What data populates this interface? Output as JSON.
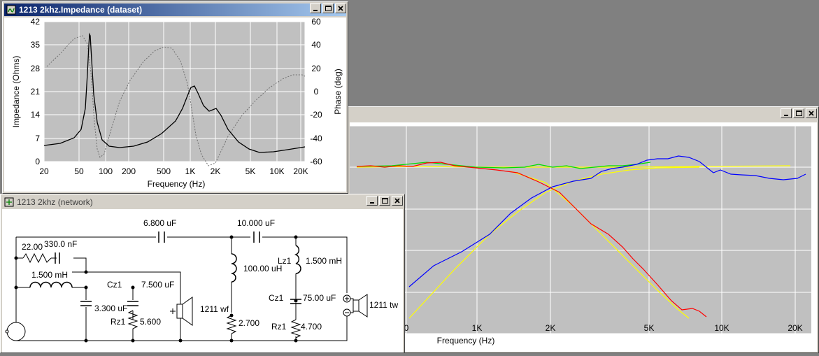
{
  "windows": {
    "impedance": {
      "title": "1213 2khz.Impedance (dataset)",
      "chart": {
        "y_left_label": "Impedance (Ohms)",
        "y_right_label": "Phase (deg)",
        "x_label": "Frequency (Hz)",
        "y_left_ticks": [
          "42",
          "35",
          "28",
          "21",
          "14",
          "7",
          "0"
        ],
        "y_right_ticks": [
          "60",
          "40",
          "20",
          "0",
          "-20",
          "-40",
          "-60"
        ],
        "x_ticks": [
          "20",
          "50",
          "100",
          "200",
          "500",
          "1K",
          "2K",
          "5K",
          "10K",
          "20K"
        ]
      }
    },
    "response": {
      "x_label": "Frequency (Hz)",
      "x_ticks": [
        "0",
        "1K",
        "2K",
        "5K",
        "10K",
        "20K"
      ]
    },
    "network": {
      "title": "1213 2khz (network)",
      "labels": {
        "c_top_left": "6.800 uF",
        "c_top_right": "10.000 uF",
        "r_22": "22.00",
        "c_330": "330.0 nF",
        "l_1500_left": "1.500 mH",
        "cz1_left": "Cz1",
        "c_7500": "7.500 uF",
        "c_3300": "3.300 uF",
        "rz1_left": "Rz1",
        "r_5600": "5.600",
        "woofer": "1211 wf",
        "l_100": "100.00 uH",
        "r_2700": "2.700",
        "lz1": "Lz1",
        "l_1500_right": "1.500 mH",
        "cz1_right": "Cz1",
        "c_75": "75.00 uF",
        "rz1_right": "Rz1",
        "r_4700": "4.700",
        "tweeter": "1211 tw"
      }
    }
  },
  "colors": {
    "title_active": "#0a246a",
    "plot_bg": "#c0c0c0",
    "woofer_curve": "#ff0000",
    "tweeter_curve": "#0000ff",
    "sum_curve": "#00dd00",
    "target_curve": "#ffff00"
  },
  "icons": [
    "window-icon",
    "minimize-icon",
    "maximize-icon",
    "close-icon"
  ]
}
